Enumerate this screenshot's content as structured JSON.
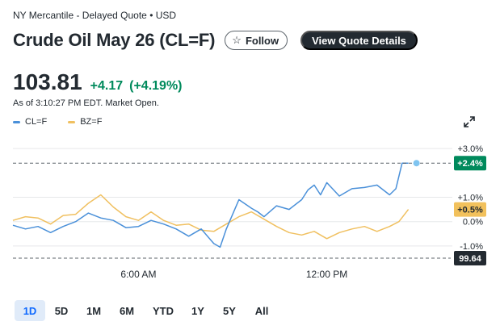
{
  "header": {
    "exchange": "NY Mercantile - Delayed Quote • USD",
    "title": "Crude Oil May 26 (CL=F)",
    "follow_label": "Follow",
    "view_quote_label": "View Quote Details"
  },
  "quote": {
    "price": "103.81",
    "change": "+4.17",
    "change_pct": "(+4.19%)",
    "as_of": "As of 3:10:27 PM EDT. Market Open."
  },
  "legend": [
    {
      "label": "CL=F",
      "color": "#4a90d9"
    },
    {
      "label": "BZ=F",
      "color": "#f0c060"
    }
  ],
  "colors": {
    "cl": "#4a90d9",
    "bz": "#f0c060",
    "up": "#008a5c",
    "bz_badge": "#f2c15c",
    "prev_badge": "#232a31",
    "active_range": "#0f69ff"
  },
  "icons": {
    "expand": "expand-arrows-icon",
    "follow": "star-icon"
  },
  "chart_data": {
    "type": "line",
    "ylabel_unit": "%",
    "ylim": [
      -1.5,
      3.3
    ],
    "y_ticks": [
      "+3.0%",
      "+1.0%",
      "0.0%",
      "-1.0%"
    ],
    "y_tick_values": [
      3.0,
      1.0,
      0.0,
      -1.0
    ],
    "x_ticks": [
      "6:00 AM",
      "12:00 PM"
    ],
    "x_tick_values": [
      6,
      12
    ],
    "xlim": [
      2.0,
      16.0
    ],
    "grid": true,
    "legend_position": "top-left",
    "badges": {
      "cl_last": {
        "label": "+2.4%",
        "value": 2.4
      },
      "bz_last": {
        "label": "+0.5%",
        "value": 0.5
      },
      "prev_close": {
        "label": "99.64",
        "value": -1.5
      }
    },
    "series": [
      {
        "name": "CL=F",
        "x": [
          2.0,
          2.4,
          2.8,
          3.2,
          3.6,
          4.0,
          4.4,
          4.8,
          5.2,
          5.6,
          6.0,
          6.4,
          6.8,
          7.2,
          7.6,
          8.0,
          8.4,
          8.6,
          8.8,
          9.2,
          9.6,
          9.8,
          10.0,
          10.4,
          10.8,
          11.2,
          11.4,
          11.6,
          11.8,
          12.0,
          12.4,
          12.8,
          13.2,
          13.6,
          14.0,
          14.2,
          14.4,
          14.6
        ],
        "y": [
          -0.15,
          -0.3,
          -0.2,
          -0.45,
          -0.2,
          0.0,
          0.35,
          0.15,
          0.05,
          -0.25,
          -0.2,
          0.05,
          -0.1,
          -0.3,
          -0.6,
          -0.3,
          -0.9,
          -1.05,
          -0.3,
          0.9,
          0.55,
          0.4,
          0.2,
          0.65,
          0.5,
          0.9,
          1.3,
          1.5,
          1.1,
          1.6,
          1.05,
          1.35,
          1.4,
          1.5,
          1.1,
          1.35,
          2.4,
          2.4
        ]
      },
      {
        "name": "BZ=F",
        "x": [
          2.0,
          2.4,
          2.8,
          3.2,
          3.6,
          4.0,
          4.4,
          4.8,
          5.2,
          5.6,
          6.0,
          6.4,
          6.8,
          7.2,
          7.6,
          8.0,
          8.4,
          8.8,
          9.2,
          9.6,
          10.0,
          10.4,
          10.8,
          11.2,
          11.6,
          12.0,
          12.4,
          12.8,
          13.2,
          13.6,
          14.0,
          14.3,
          14.6
        ],
        "y": [
          0.05,
          0.2,
          0.15,
          -0.1,
          0.25,
          0.3,
          0.75,
          1.1,
          0.6,
          0.2,
          0.05,
          0.4,
          0.05,
          -0.15,
          -0.1,
          -0.35,
          -0.4,
          -0.1,
          0.2,
          0.4,
          0.1,
          -0.2,
          -0.45,
          -0.55,
          -0.4,
          -0.7,
          -0.45,
          -0.3,
          -0.2,
          -0.4,
          -0.2,
          0.0,
          0.5
        ]
      }
    ]
  },
  "ranges": [
    "1D",
    "5D",
    "1M",
    "6M",
    "YTD",
    "1Y",
    "5Y",
    "All"
  ],
  "active_range": "1D"
}
